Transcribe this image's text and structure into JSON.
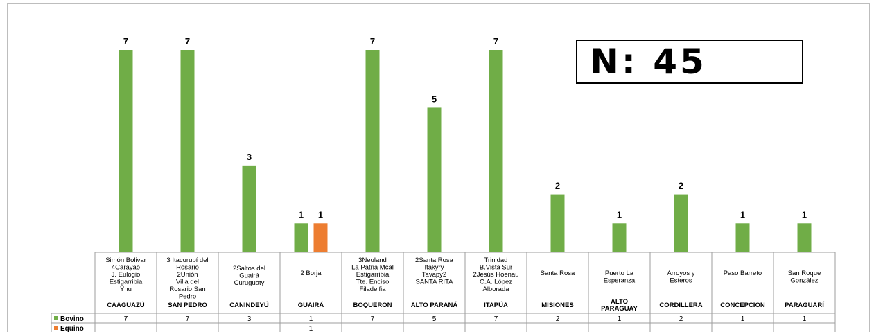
{
  "summary": {
    "n_label": "N: 45"
  },
  "chart_data": {
    "type": "bar",
    "title": "",
    "xlabel": "",
    "ylabel": "",
    "ylim": [
      0,
      7
    ],
    "categories": [
      {
        "departamento": "CAAGUAZÚ",
        "localidades": [
          "Simón Bolivar",
          "4Carayao",
          "J. Eulogio",
          "Estigarribia",
          "Yhu"
        ]
      },
      {
        "departamento": "SAN PEDRO",
        "localidades": [
          "3 Itacurubí del",
          "Rosario",
          "2Unión",
          "Villa del",
          "Rosario San",
          "Pedro"
        ]
      },
      {
        "departamento": "CANINDEYÚ",
        "localidades": [
          "2Saltos del",
          "Guairá",
          "Curuguaty"
        ]
      },
      {
        "departamento": "GUAIRÁ",
        "localidades": [
          "2 Borja"
        ]
      },
      {
        "departamento": "BOQUERON",
        "localidades": [
          "3Neuland",
          "La Patria Mcal",
          "Estigarribia",
          "Tte. Enciso",
          "Filadelfia"
        ]
      },
      {
        "departamento": "ALTO PARANÁ",
        "localidades": [
          "2Santa Rosa",
          "Itakyry",
          "Tavapy2",
          "SANTA RITA"
        ]
      },
      {
        "departamento": "ITAPÚA",
        "localidades": [
          "Trinidad",
          "B.Vista Sur",
          "2Jesús Hoenau",
          "C.A. López",
          "Alborada"
        ]
      },
      {
        "departamento": "MISIONES",
        "localidades": [
          "Santa Rosa"
        ]
      },
      {
        "departamento": "ALTO PARAGUAY",
        "departamento_lines": [
          "ALTO",
          "PARAGUAY"
        ],
        "localidades": [
          "Puerto La",
          "Esperanza"
        ]
      },
      {
        "departamento": "CORDILLERA",
        "localidades": [
          "Arroyos y",
          "Esteros"
        ]
      },
      {
        "departamento": "CONCEPCION",
        "localidades": [
          "Paso Barreto"
        ]
      },
      {
        "departamento": "PARAGUARÍ",
        "localidades": [
          "San Roque",
          "González"
        ]
      }
    ],
    "series": [
      {
        "name": "Bovino",
        "color": "#70ad47",
        "values": [
          7,
          7,
          3,
          1,
          7,
          5,
          7,
          2,
          1,
          2,
          1,
          1
        ]
      },
      {
        "name": "Equino",
        "color": "#ed7d31",
        "values": [
          null,
          null,
          null,
          1,
          null,
          null,
          null,
          null,
          null,
          null,
          null,
          null
        ]
      }
    ],
    "grid": false,
    "legend": "in-table"
  }
}
